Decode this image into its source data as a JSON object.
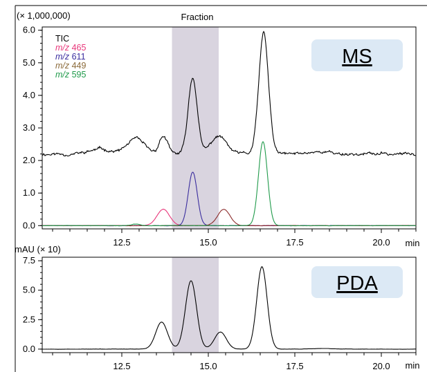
{
  "chart_data": [
    {
      "type": "line",
      "title": "",
      "multiplier_label": "(× 1,000,000)",
      "xlabel": "min",
      "xlim": [
        10.2,
        21.0
      ],
      "ylim": [
        -0.1,
        6.1
      ],
      "x_ticks": [
        12.5,
        15.0,
        17.5,
        20.0
      ],
      "x_tick_labels": [
        "12.5",
        "15.0",
        "17.5",
        "20.0"
      ],
      "y_ticks": [
        0.0,
        1.0,
        2.0,
        3.0,
        4.0,
        5.0,
        6.0
      ],
      "y_tick_labels": [
        "0.0",
        "1.0",
        "2.0",
        "3.0",
        "4.0",
        "5.0",
        "6.0"
      ],
      "grid": false,
      "legend_position": "top-left",
      "badge": "MS",
      "badge_color": "#dce9f5",
      "fraction": {
        "label": "Fraction",
        "x_start": 13.95,
        "x_end": 15.3,
        "color": "#d9d4df"
      },
      "series": [
        {
          "name": "TIC",
          "legend_prefix": "",
          "legend_number": "TIC",
          "color": "#000000",
          "baseline": 2.2,
          "noise": 0.1,
          "peaks": [
            {
              "x": 11.9,
              "h": 0.15,
              "w": 0.3
            },
            {
              "x": 12.9,
              "h": 0.45,
              "w": 0.25
            },
            {
              "x": 13.7,
              "h": 0.55,
              "w": 0.12
            },
            {
              "x": 14.55,
              "h": 2.35,
              "w": 0.13
            },
            {
              "x": 15.3,
              "h": 0.55,
              "w": 0.22
            },
            {
              "x": 16.6,
              "h": 3.7,
              "w": 0.14
            },
            {
              "x": 18.2,
              "h": 0.08,
              "w": 0.3
            }
          ]
        },
        {
          "name": "m/z 465",
          "legend_prefix": "m/z",
          "legend_number": "465",
          "color": "#e8367a",
          "baseline": 0.0,
          "noise": 0.01,
          "peaks": [
            {
              "x": 13.7,
              "h": 0.5,
              "w": 0.18
            }
          ]
        },
        {
          "name": "m/z 611",
          "legend_prefix": "m/z",
          "legend_number": "611",
          "color": "#3a2d9e",
          "baseline": 0.0,
          "noise": 0.01,
          "peaks": [
            {
              "x": 14.55,
              "h": 1.65,
              "w": 0.13
            }
          ]
        },
        {
          "name": "m/z 449",
          "legend_prefix": "m/z",
          "legend_number": "449",
          "color": "#8b2a2a",
          "baseline": 0.0,
          "noise": 0.01,
          "peaks": [
            {
              "x": 15.45,
              "h": 0.5,
              "w": 0.18
            }
          ]
        },
        {
          "name": "m/z 595",
          "legend_prefix": "m/z",
          "legend_number": "595",
          "color": "#1f9a4a",
          "baseline": 0.0,
          "noise": 0.01,
          "peaks": [
            {
              "x": 12.9,
              "h": 0.05,
              "w": 0.12
            },
            {
              "x": 16.58,
              "h": 2.58,
              "w": 0.13
            }
          ]
        }
      ],
      "legend_number_colors": [
        "#000000",
        "#e8367a",
        "#3a2d9e",
        "#8b6a3a",
        "#1f9a4a"
      ]
    },
    {
      "type": "line",
      "title": "",
      "ylabel": "mAU (× 10)",
      "xlabel": "min",
      "xlim": [
        10.2,
        21.0
      ],
      "ylim": [
        -0.3,
        7.8
      ],
      "x_ticks": [
        12.5,
        15.0,
        17.5,
        20.0
      ],
      "x_tick_labels": [
        "12.5",
        "15.0",
        "17.5",
        "20.0"
      ],
      "y_ticks": [
        0.0,
        2.5,
        5.0,
        7.5
      ],
      "y_tick_labels": [
        "0.0",
        "2.5",
        "5.0",
        "7.5"
      ],
      "grid": false,
      "badge": "PDA",
      "badge_color": "#dce9f5",
      "fraction": {
        "x_start": 13.95,
        "x_end": 15.3,
        "color": "#d9d4df"
      },
      "series": [
        {
          "name": "",
          "color": "#000000",
          "baseline": 0.0,
          "noise": 0.02,
          "peaks": [
            {
              "x": 13.65,
              "h": 2.3,
              "w": 0.17
            },
            {
              "x": 14.5,
              "h": 5.8,
              "w": 0.16
            },
            {
              "x": 15.35,
              "h": 1.45,
              "w": 0.17
            },
            {
              "x": 16.55,
              "h": 7.0,
              "w": 0.15
            },
            {
              "x": 18.3,
              "h": 0.05,
              "w": 0.3
            }
          ]
        }
      ]
    }
  ]
}
